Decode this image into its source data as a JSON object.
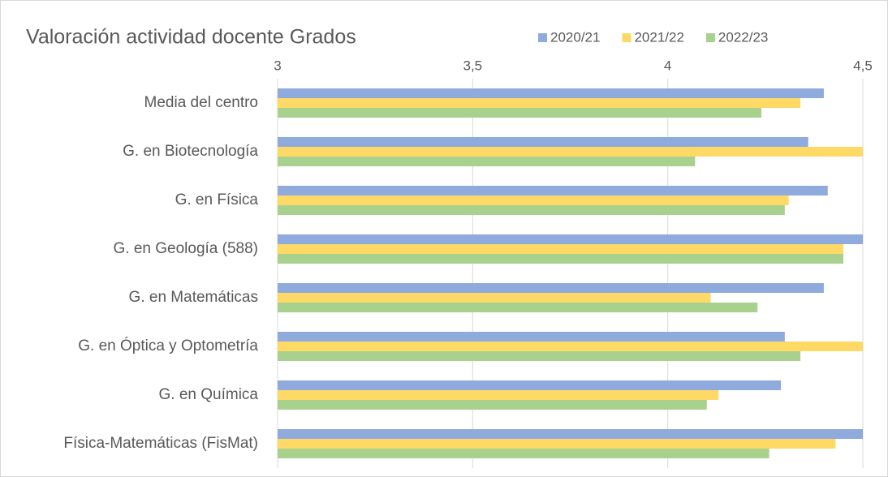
{
  "chart_data": {
    "type": "hbar",
    "title": "Valoración actividad docente Grados",
    "categories": [
      "Media del centro",
      "G. en Biotecnología",
      "G. en Física",
      "G. en Geología (588)",
      "G. en Matemáticas",
      "G. en Óptica y Optometría",
      "G. en Química",
      "Física-Matemáticas (FisMat)"
    ],
    "series": [
      {
        "name": "2020/21",
        "color": "#8faadc",
        "values": [
          4.4,
          4.36,
          4.41,
          4.5,
          4.4,
          4.3,
          4.29,
          4.5
        ]
      },
      {
        "name": "2021/22",
        "color": "#ffd966",
        "values": [
          4.34,
          4.5,
          4.31,
          4.45,
          4.11,
          4.5,
          4.13,
          4.43
        ]
      },
      {
        "name": "2022/23",
        "color": "#a9d18e",
        "values": [
          4.24,
          4.07,
          4.3,
          4.45,
          4.23,
          4.34,
          4.1,
          4.26
        ]
      }
    ],
    "xlim": [
      3,
      4.5
    ],
    "xticks": [
      3,
      {
        "value": 3.5,
        "label": "3,5"
      },
      4,
      {
        "value": 4.5,
        "label": "4,5"
      }
    ],
    "grid": true,
    "legend": "top-right"
  }
}
